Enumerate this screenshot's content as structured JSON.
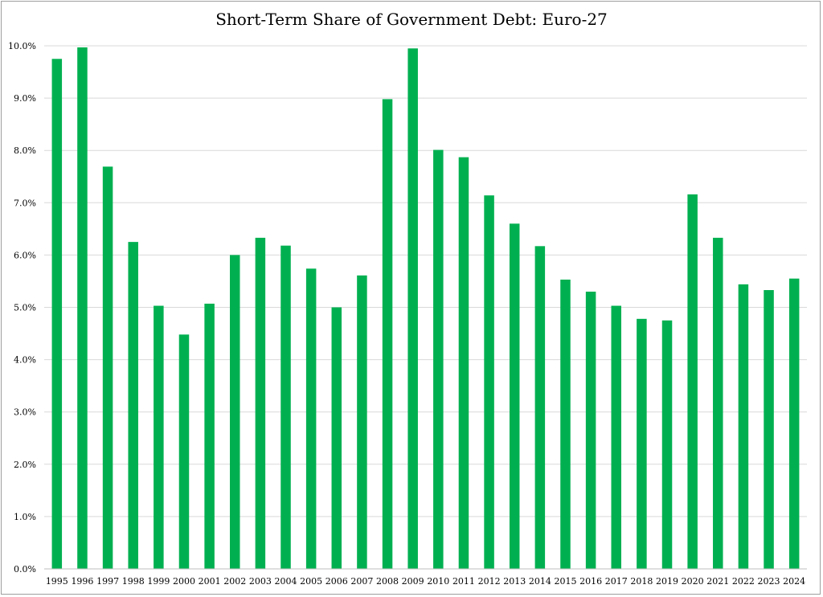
{
  "chart_data": {
    "type": "bar",
    "title": "Short-Term Share of Government Debt: Euro-27",
    "xlabel": "",
    "ylabel": "",
    "categories": [
      "1995",
      "1996",
      "1997",
      "1998",
      "1999",
      "2000",
      "2001",
      "2002",
      "2003",
      "2004",
      "2005",
      "2006",
      "2007",
      "2008",
      "2009",
      "2010",
      "2011",
      "2012",
      "2013",
      "2014",
      "2015",
      "2016",
      "2017",
      "2018",
      "2019",
      "2020",
      "2021",
      "2022",
      "2023",
      "2024"
    ],
    "values": [
      9.75,
      9.97,
      7.69,
      6.25,
      5.03,
      4.48,
      5.07,
      6.0,
      6.33,
      6.18,
      5.74,
      5.0,
      5.61,
      8.98,
      9.95,
      8.01,
      7.87,
      7.14,
      6.6,
      6.17,
      5.53,
      5.3,
      5.03,
      4.78,
      4.75,
      7.16,
      6.33,
      5.44,
      5.33,
      5.55
    ],
    "value_format": "percent_1dp",
    "ylim": [
      0,
      10
    ],
    "yticks": [
      0,
      1,
      2,
      3,
      4,
      5,
      6,
      7,
      8,
      9,
      10
    ],
    "ytick_labels": [
      "0.0%",
      "1.0%",
      "2.0%",
      "3.0%",
      "4.0%",
      "5.0%",
      "6.0%",
      "7.0%",
      "8.0%",
      "9.0%",
      "10.0%"
    ],
    "grid": true,
    "legend": "none",
    "colors": {
      "bar": "#00b050",
      "grid": "#d9d9d9",
      "axis": "#bfbfbf"
    }
  }
}
